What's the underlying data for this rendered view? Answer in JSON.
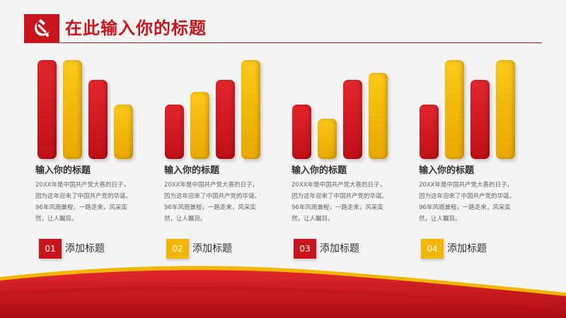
{
  "header": {
    "title": "在此输入你的标题",
    "logo_icon": "hammer-sickle-icon"
  },
  "colors": {
    "primary_red": "#c8141c",
    "gold": "#f2b705",
    "background": "#f4f4f4"
  },
  "columns": [
    {
      "bars": [
        "red",
        "gold",
        "red",
        "gold"
      ],
      "title": "输入你的标题",
      "desc": [
        "20XX年是中国共产党大喜的日子，",
        "因为这年迎来了中国共产党的华诞。",
        "96年风雨兼程，一路走来，风采奕",
        "然，让人瞩目。"
      ],
      "badge_num": "01",
      "badge_color": "red",
      "badge_label": "添加标题"
    },
    {
      "bars": [
        "red",
        "gold",
        "red",
        "gold"
      ],
      "title": "输入你的标题",
      "desc": [
        "20XX年是中国共产党大喜的日子，",
        "因为这年迎来了中国共产党的华诞。",
        "96年风雨兼程，一路走来，风采奕",
        "然，让人瞩目。"
      ],
      "badge_num": "02",
      "badge_color": "gold",
      "badge_label": "添加标题"
    },
    {
      "bars": [
        "red",
        "gold",
        "red",
        "gold"
      ],
      "title": "输入你的标题",
      "desc": [
        "20XX年是中国共产党大喜的日子，",
        "因为这年迎来了中国共产党的华诞。",
        "96年风雨兼程，一路走来，风采奕",
        "然，让人瞩目。"
      ],
      "badge_num": "03",
      "badge_color": "red",
      "badge_label": "添加标题"
    },
    {
      "bars": [
        "red",
        "gold",
        "red",
        "gold"
      ],
      "title": "输入你的标题",
      "desc": [
        "20XX年是中国共产党大喜的日子，",
        "因为这年迎来了中国共产党的华诞。",
        "96年风雨兼程，一路走来，风采奕",
        "然，让人瞩目。"
      ],
      "badge_num": "04",
      "badge_color": "gold",
      "badge_label": "添加标题"
    }
  ]
}
